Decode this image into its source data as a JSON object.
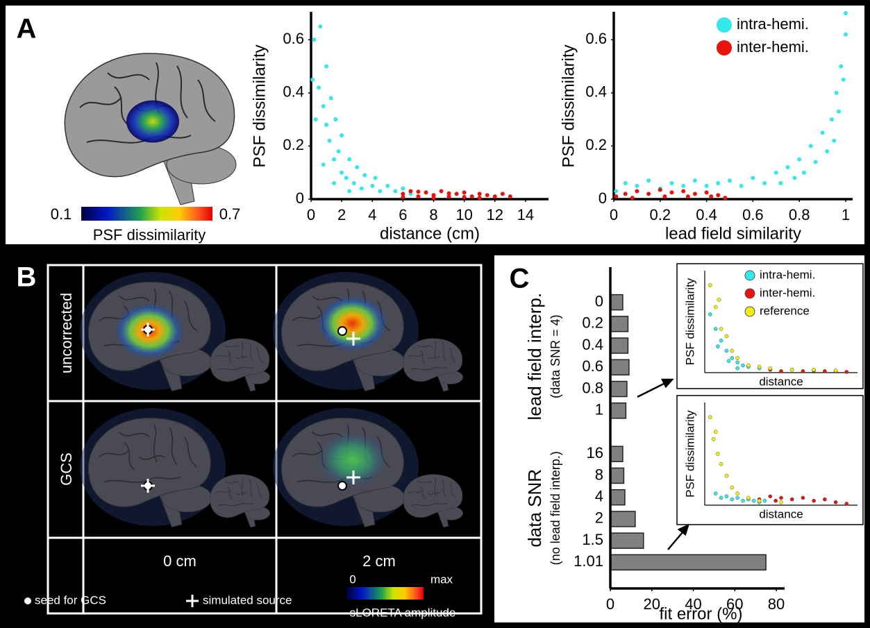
{
  "panel_labels": [
    "A",
    "B",
    "C"
  ],
  "panel_a": {
    "colorbar": {
      "min_label": "0.1",
      "max_label": "0.7",
      "label": "PSF dissimilarity"
    }
  },
  "panel_b": {
    "rows": [
      "uncorrected",
      "GCS"
    ],
    "columns": [
      "0 cm",
      "2 cm"
    ],
    "legend": {
      "seed": "seed for GCS",
      "source": "simulated source",
      "colorbar_min": "0",
      "colorbar_max": "max",
      "colorbar_label": "sLORETA amplitude"
    }
  },
  "chart_data": [
    {
      "type": "scatter",
      "x_label": "distance (cm)",
      "y_label": "PSF dissimilarity",
      "xlim": [
        0,
        15.5
      ],
      "ylim": [
        0,
        0.7
      ],
      "xticks": [
        0,
        2,
        4,
        6,
        8,
        10,
        12,
        14
      ],
      "yticks": [
        0,
        0.2,
        0.4,
        0.6
      ],
      "series": [
        {
          "color": "#33e8e8",
          "x": [
            0.1,
            0.2,
            0.3,
            0.5,
            0.6,
            0.8,
            1,
            1,
            1.2,
            1.3,
            1.5,
            1.6,
            1.8,
            2,
            2,
            2.3,
            2.5,
            2.8,
            3,
            3.3,
            3.5,
            4,
            4.2,
            4.5,
            5,
            5.5,
            6,
            6.5,
            0.8,
            1.5,
            2.5
          ],
          "values": [
            0.45,
            0.6,
            0.3,
            0.42,
            0.65,
            0.35,
            0.28,
            0.5,
            0.22,
            0.38,
            0.15,
            0.3,
            0.18,
            0.1,
            0.24,
            0.08,
            0.15,
            0.06,
            0.12,
            0.04,
            0.09,
            0.05,
            0.08,
            0.03,
            0.05,
            0.03,
            0.04,
            0.02,
            0.13,
            0.06,
            0.03
          ]
        },
        {
          "color": "#e8140c",
          "x": [
            6,
            6.5,
            7,
            7.5,
            8,
            8.5,
            9,
            9.5,
            10,
            10.5,
            11,
            11.5,
            12,
            12.5,
            13,
            6,
            7,
            8,
            9,
            10,
            11
          ],
          "values": [
            0.02,
            0.03,
            0.01,
            0.025,
            0.015,
            0.03,
            0.01,
            0.02,
            0.025,
            0.01,
            0.02,
            0.015,
            0.01,
            0.02,
            0.01,
            0.008,
            0.028,
            0.005,
            0.022,
            0.008,
            0.005
          ]
        }
      ]
    },
    {
      "type": "scatter",
      "x_label": "lead field similarity",
      "y_label": "PSF dissimilarity",
      "xlim": [
        0,
        1.03
      ],
      "ylim": [
        0,
        0.7
      ],
      "xticks": [
        0,
        0.2,
        0.4,
        0.6,
        0.8,
        1
      ],
      "yticks": [
        0,
        0.2,
        0.4,
        0.6
      ],
      "series": [
        {
          "name": "intra-hemi.",
          "color": "#33e8e8",
          "x": [
            0.01,
            0.05,
            0.1,
            0.15,
            0.2,
            0.25,
            0.3,
            0.35,
            0.4,
            0.45,
            0.5,
            0.55,
            0.6,
            0.65,
            0.7,
            0.72,
            0.75,
            0.78,
            0.8,
            0.82,
            0.85,
            0.87,
            0.9,
            0.92,
            0.94,
            0.95,
            0.96,
            0.97,
            0.98,
            0.99,
            1,
            1
          ],
          "values": [
            0.03,
            0.06,
            0.05,
            0.07,
            0.04,
            0.06,
            0.05,
            0.07,
            0.05,
            0.06,
            0.07,
            0.05,
            0.08,
            0.06,
            0.1,
            0.06,
            0.12,
            0.08,
            0.15,
            0.1,
            0.2,
            0.14,
            0.25,
            0.18,
            0.3,
            0.22,
            0.4,
            0.33,
            0.5,
            0.45,
            0.62,
            0.7
          ]
        },
        {
          "name": "inter-hemi.",
          "color": "#e8140c",
          "x": [
            0.01,
            0.05,
            0.08,
            0.1,
            0.15,
            0.2,
            0.22,
            0.25,
            0.3,
            0.32,
            0.35,
            0.4,
            0.42,
            0.45,
            0.48
          ],
          "values": [
            0.01,
            0.02,
            0.005,
            0.03,
            0.02,
            0.035,
            0.01,
            0.025,
            0.03,
            0.01,
            0.02,
            0.025,
            0.01,
            0.015,
            0.005
          ]
        }
      ]
    },
    {
      "type": "bar",
      "orientation": "horizontal",
      "x_label": "fit error (%)",
      "group_labels": [
        {
          "title": "lead field interp.",
          "subtitle": "(data SNR = 4)"
        },
        {
          "title": "data SNR",
          "subtitle": "(no lead field interp.)"
        }
      ],
      "categories": [
        "0",
        "0.2",
        "0.4",
        "0.6",
        "0.8",
        "1",
        null,
        "16",
        "8",
        "4",
        "2",
        "1.5",
        "1.01"
      ],
      "values": [
        6,
        8.5,
        8.5,
        9,
        8,
        7.5,
        null,
        6,
        6.5,
        7,
        12,
        16,
        75
      ],
      "color": "#808080",
      "xlim": [
        0,
        84
      ],
      "xticks": [
        0,
        20,
        40,
        60,
        80
      ]
    },
    {
      "type": "scatter",
      "x_label": "distance",
      "y_label": "PSF dissimilarity",
      "xlim": [
        0,
        14
      ],
      "ylim": [
        0,
        0.7
      ],
      "series": [
        {
          "name": "intra-hemi.",
          "color": "#33e8e8",
          "x": [
            0.5,
            1,
            1.5,
            2,
            2.5,
            3,
            3.5,
            4,
            5,
            1.2,
            2.2,
            3
          ],
          "values": [
            0.4,
            0.3,
            0.22,
            0.15,
            0.1,
            0.07,
            0.05,
            0.04,
            0.03,
            0.18,
            0.08,
            0.03
          ]
        },
        {
          "name": "inter-hemi.",
          "color": "#e8140c",
          "x": [
            6,
            7,
            8,
            9,
            10,
            11,
            12,
            13
          ],
          "values": [
            0.02,
            0.01,
            0.02,
            0.01,
            0.015,
            0.01,
            0.01,
            0.005
          ]
        },
        {
          "name": "reference",
          "color": "#f0f00a",
          "x": [
            0.5,
            1,
            1.3,
            1.5,
            2,
            2.5,
            3,
            4,
            5,
            6,
            8,
            10,
            12
          ],
          "values": [
            0.6,
            0.45,
            0.5,
            0.3,
            0.25,
            0.15,
            0.1,
            0.05,
            0.04,
            0.03,
            0.02,
            0.02,
            0.015
          ]
        }
      ]
    },
    {
      "type": "scatter",
      "x_label": "distance",
      "y_label": "PSF dissimilarity",
      "xlim": [
        0,
        14
      ],
      "ylim": [
        0,
        0.7
      ],
      "series": [
        {
          "color": "#33e8e8",
          "x": [
            1,
            1.5,
            2,
            2.5,
            3,
            3.5,
            4,
            4.5,
            5,
            5.5
          ],
          "values": [
            0.08,
            0.05,
            0.06,
            0.04,
            0.05,
            0.03,
            0.04,
            0.03,
            0.02,
            0.03
          ]
        },
        {
          "color": "#e8140c",
          "x": [
            5,
            6,
            6.5,
            7,
            8,
            9,
            10,
            11,
            12,
            13
          ],
          "values": [
            0.04,
            0.06,
            0.03,
            0.05,
            0.04,
            0.05,
            0.03,
            0.04,
            0.02,
            0.01
          ]
        },
        {
          "color": "#f0f00a",
          "x": [
            0.5,
            0.8,
            1,
            1.2,
            1.5,
            2,
            2.5,
            3,
            4,
            5,
            7
          ],
          "values": [
            0.6,
            0.45,
            0.5,
            0.35,
            0.28,
            0.2,
            0.12,
            0.08,
            0.05,
            0.03,
            0.02
          ]
        }
      ]
    }
  ]
}
